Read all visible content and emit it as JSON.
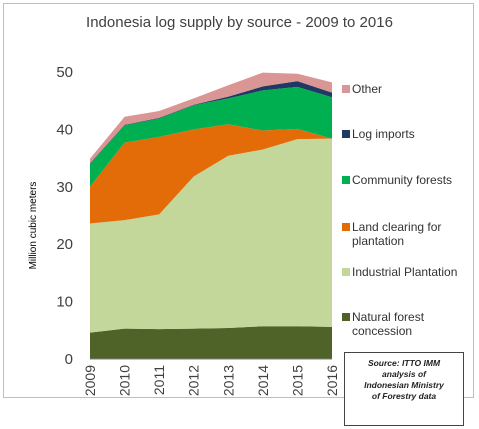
{
  "chart_data": {
    "type": "area",
    "title": "Indonesia log supply by source - 2009 to 2016",
    "ylabel": "Million cubic meters",
    "xlabel": "",
    "x": [
      "2009",
      "2010",
      "2011",
      "2012",
      "2013",
      "2014",
      "2015",
      "2016"
    ],
    "ylim": [
      0,
      50
    ],
    "yticks": [
      0,
      10,
      20,
      30,
      40,
      50
    ],
    "stacked": true,
    "grid": false,
    "legend_position": "right",
    "series": [
      {
        "name": "Natural forest concession",
        "color": "#4f6228",
        "values": [
          4.6,
          5.3,
          5.2,
          5.3,
          5.4,
          5.7,
          5.7,
          5.6
        ]
      },
      {
        "name": "Industrial Plantation",
        "color": "#c4d79b",
        "values": [
          19.0,
          18.9,
          20.0,
          26.5,
          30.0,
          30.8,
          32.6,
          32.8
        ]
      },
      {
        "name": "Land clearing for plantation",
        "color": "#e36c09",
        "values": [
          6.4,
          13.5,
          13.5,
          8.2,
          5.5,
          3.3,
          1.8,
          0
        ]
      },
      {
        "name": "Community forests",
        "color": "#00b050",
        "values": [
          4.0,
          3.0,
          3.2,
          4.2,
          4.5,
          7.0,
          7.3,
          7.2
        ]
      },
      {
        "name": "Log imports",
        "color": "#1f3864",
        "values": [
          0.1,
          0.1,
          0.1,
          0.1,
          0.3,
          0.7,
          1.0,
          0.8
        ]
      },
      {
        "name": "Other",
        "color": "#d99694",
        "values": [
          0.8,
          1.4,
          1.2,
          1.1,
          2.0,
          2.4,
          1.3,
          1.8
        ]
      }
    ],
    "legend_order": [
      "Other",
      "Log imports",
      "Community forests",
      "Land clearing for plantation",
      "Industrial Plantation",
      "Natural forest concession"
    ],
    "source_note": [
      "Source: ITTO IMM",
      "analysis of",
      "Indonesian Ministry",
      "of Forestry data"
    ]
  }
}
